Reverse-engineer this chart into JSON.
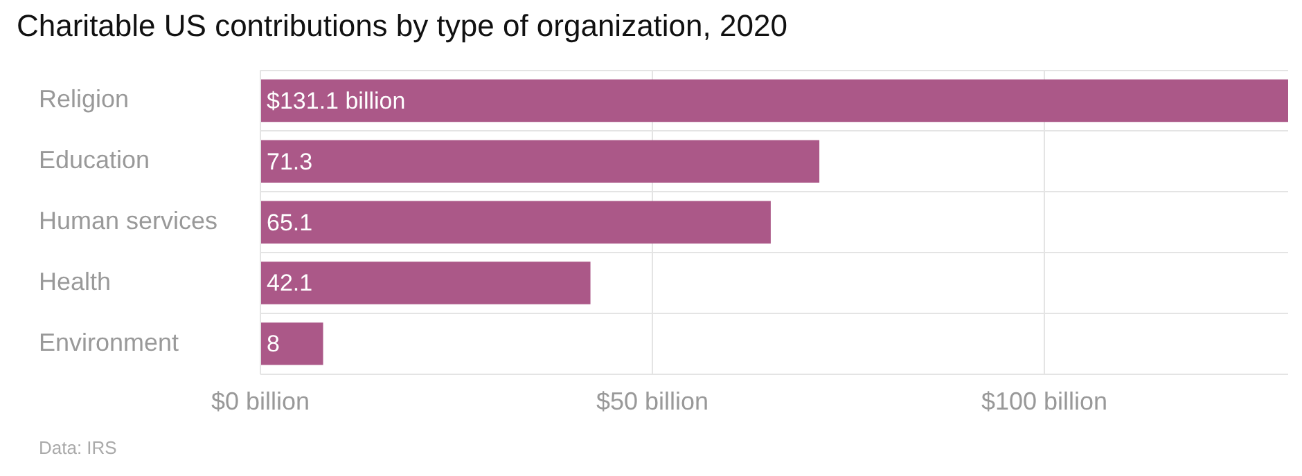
{
  "chart_data": {
    "type": "bar",
    "orientation": "horizontal",
    "title": "Charitable US contributions by type of organization, 2020",
    "categories": [
      "Religion",
      "Education",
      "Human services",
      "Health",
      "Environment"
    ],
    "values": [
      131.1,
      71.3,
      65.1,
      42.1,
      8
    ],
    "value_labels": [
      "$131.1 billion",
      "71.3",
      "65.1",
      "42.1",
      "8"
    ],
    "color": "#ab5888",
    "xlim": [
      0,
      131.1
    ],
    "xticks": [
      {
        "value": 0,
        "label": "$0 billion"
      },
      {
        "value": 50,
        "label": "$50 billion"
      },
      {
        "value": 100,
        "label": "$100 billion"
      }
    ],
    "grid": true,
    "annotations": [
      "Data: IRS"
    ]
  }
}
